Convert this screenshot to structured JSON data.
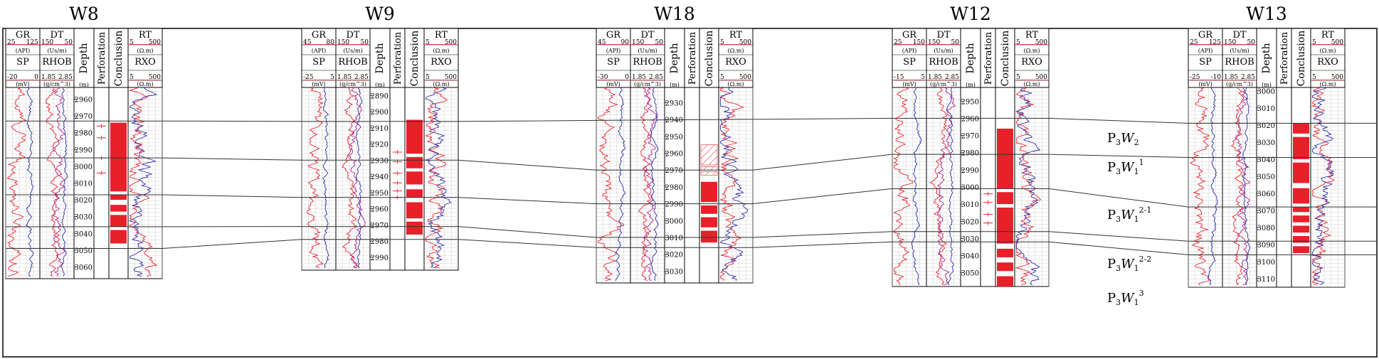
{
  "figure": {
    "colors": {
      "red": "#e8202a",
      "blue": "#2a2aa8",
      "magenta": "#b0208c",
      "grid": "#c4c4c4",
      "line": "#000000"
    },
    "header_labels": {
      "gr": "GR",
      "dt": "DT",
      "sp": "SP",
      "rhob": "RHOB",
      "rt": "RT",
      "rxo": "RXO",
      "depth": "Depth",
      "depth_unit": "(m)",
      "perforation": "Perforation",
      "conclusion": "Conclusion",
      "api": "(API)",
      "us_m": "(Us/m)",
      "mv": "(mV)",
      "g_cm3": "(g/cm^3)",
      "ohm_m": "(Ω.m)"
    },
    "wells": [
      {
        "name": "W8",
        "gr_range": [
          "25",
          "125"
        ],
        "dt_range": [
          "150",
          "50"
        ],
        "sp_range": [
          "-20",
          "0"
        ],
        "rhob_range": [
          "1.85",
          "2.85"
        ],
        "rt_range": [
          "5",
          "500"
        ],
        "rxo_range": [
          "5",
          "500"
        ],
        "depth_ticks": [
          "2960",
          "2970",
          "2980",
          "2990",
          "3000",
          "3010",
          "3020",
          "3030",
          "3040",
          "3050",
          "3060"
        ],
        "depth_start": 2953,
        "depth_end": 3067,
        "conclusion_intervals": [
          [
            2974,
            3015
          ],
          [
            3017,
            3020
          ],
          [
            3023,
            3027
          ],
          [
            3029,
            3036
          ],
          [
            3038,
            3046
          ]
        ],
        "perforations": [
          2976,
          2983,
          2995,
          3004
        ]
      },
      {
        "name": "W9",
        "gr_range": [
          "45",
          "80"
        ],
        "dt_range": [
          "150",
          "50"
        ],
        "sp_range": [
          "-25",
          "5"
        ],
        "rhob_range": [
          "1.85",
          "2.85"
        ],
        "rt_range": [
          "5",
          "500"
        ],
        "rxo_range": [
          "5",
          "500"
        ],
        "depth_ticks": [
          "2890",
          "2900",
          "2910",
          "2920",
          "2930",
          "2940",
          "2950",
          "2960",
          "2970",
          "2980",
          "2990"
        ],
        "depth_start": 2885,
        "depth_end": 2998,
        "conclusion_intervals": [
          [
            2905,
            2926
          ],
          [
            2928,
            2935
          ],
          [
            2937,
            2945
          ],
          [
            2948,
            2953
          ],
          [
            2956,
            2966
          ],
          [
            2968,
            2976
          ]
        ],
        "perforations": [
          2925,
          2931,
          2938,
          2944,
          2949,
          2953
        ]
      },
      {
        "name": "W18",
        "gr_range": [
          "45",
          "90"
        ],
        "dt_range": [
          "150",
          "50"
        ],
        "sp_range": [
          "-30",
          "0"
        ],
        "rhob_range": [
          "1.85",
          "2.85"
        ],
        "rt_range": [
          "5",
          "500"
        ],
        "rxo_range": [
          "5",
          "500"
        ],
        "depth_ticks": [
          "2930",
          "2940",
          "2950",
          "2960",
          "2970",
          "2980",
          "2990",
          "3000",
          "3010",
          "3020",
          "3030"
        ],
        "depth_start": 2921,
        "depth_end": 3037,
        "conclusion_intervals": [
          [
            2977,
            2989
          ],
          [
            2991,
            2996
          ],
          [
            2998,
            3004
          ],
          [
            3006,
            3013
          ]
        ],
        "hatched_intervals": [
          [
            2955,
            2967
          ],
          [
            2968,
            2970
          ],
          [
            2971,
            2973
          ]
        ],
        "perforations": []
      },
      {
        "name": "W12",
        "gr_range": [
          "25",
          "150"
        ],
        "dt_range": [
          "150",
          "50"
        ],
        "sp_range": [
          "-15",
          "5"
        ],
        "rhob_range": [
          "1.85",
          "2.85"
        ],
        "rt_range": [
          "5",
          "500"
        ],
        "rxo_range": [
          "5",
          "500"
        ],
        "depth_ticks": [
          "2950",
          "2960",
          "2970",
          "2980",
          "2990",
          "3000",
          "3010",
          "3020",
          "3030",
          "3040",
          "3050"
        ],
        "depth_start": 2942,
        "depth_end": 3058,
        "conclusion_intervals": [
          [
            2966,
            3001
          ],
          [
            3003,
            3010
          ],
          [
            3012,
            3033
          ],
          [
            3036,
            3041
          ],
          [
            3044,
            3049
          ],
          [
            3052,
            3058
          ]
        ],
        "perforations": [
          3004,
          3009,
          3016,
          3021
        ]
      },
      {
        "name": "W13",
        "gr_range": [
          "25",
          "125"
        ],
        "dt_range": [
          "150",
          "50"
        ],
        "sp_range": [
          "-25",
          "-10"
        ],
        "rhob_range": [
          "1.85",
          "2.85"
        ],
        "rt_range": [
          "5",
          "500"
        ],
        "rxo_range": [
          "5",
          "500"
        ],
        "depth_ticks": [
          "3000",
          "3010",
          "3020",
          "3030",
          "3040",
          "3050",
          "3060",
          "3070",
          "3080",
          "3090",
          "3100",
          "3110"
        ],
        "depth_start": 2998,
        "depth_end": 3115,
        "conclusion_intervals": [
          [
            3019,
            3025
          ],
          [
            3027,
            3040
          ],
          [
            3042,
            3054
          ],
          [
            3057,
            3066
          ],
          [
            3068,
            3071
          ],
          [
            3073,
            3077
          ],
          [
            3079,
            3083
          ],
          [
            3085,
            3089
          ],
          [
            3091,
            3095
          ]
        ],
        "perforations": []
      }
    ],
    "zones": [
      {
        "base": "P",
        "sub": "3",
        "letter": "W",
        "idx": "2",
        "sup": ""
      },
      {
        "base": "P",
        "sub": "3",
        "letter": "W",
        "idx": "1",
        "sup": "1"
      },
      {
        "base": "P",
        "sub": "3",
        "letter": "W",
        "idx": "1",
        "sup": "2-1"
      },
      {
        "base": "P",
        "sub": "3",
        "letter": "W",
        "idx": "1",
        "sup": "2-2"
      },
      {
        "base": "P",
        "sub": "3",
        "letter": "W",
        "idx": "1",
        "sup": "3"
      }
    ],
    "correlation_depths": [
      [
        2973,
        2906,
        null,
        2960,
        3019
      ],
      [
        2995,
        2930,
        2970,
        2981,
        3039
      ],
      [
        3017,
        2953,
        2990,
        3001,
        3068
      ],
      [
        3036,
        2971,
        3010,
        3026,
        3088
      ],
      [
        3049,
        2979,
        3016,
        3032,
        3096
      ]
    ]
  }
}
